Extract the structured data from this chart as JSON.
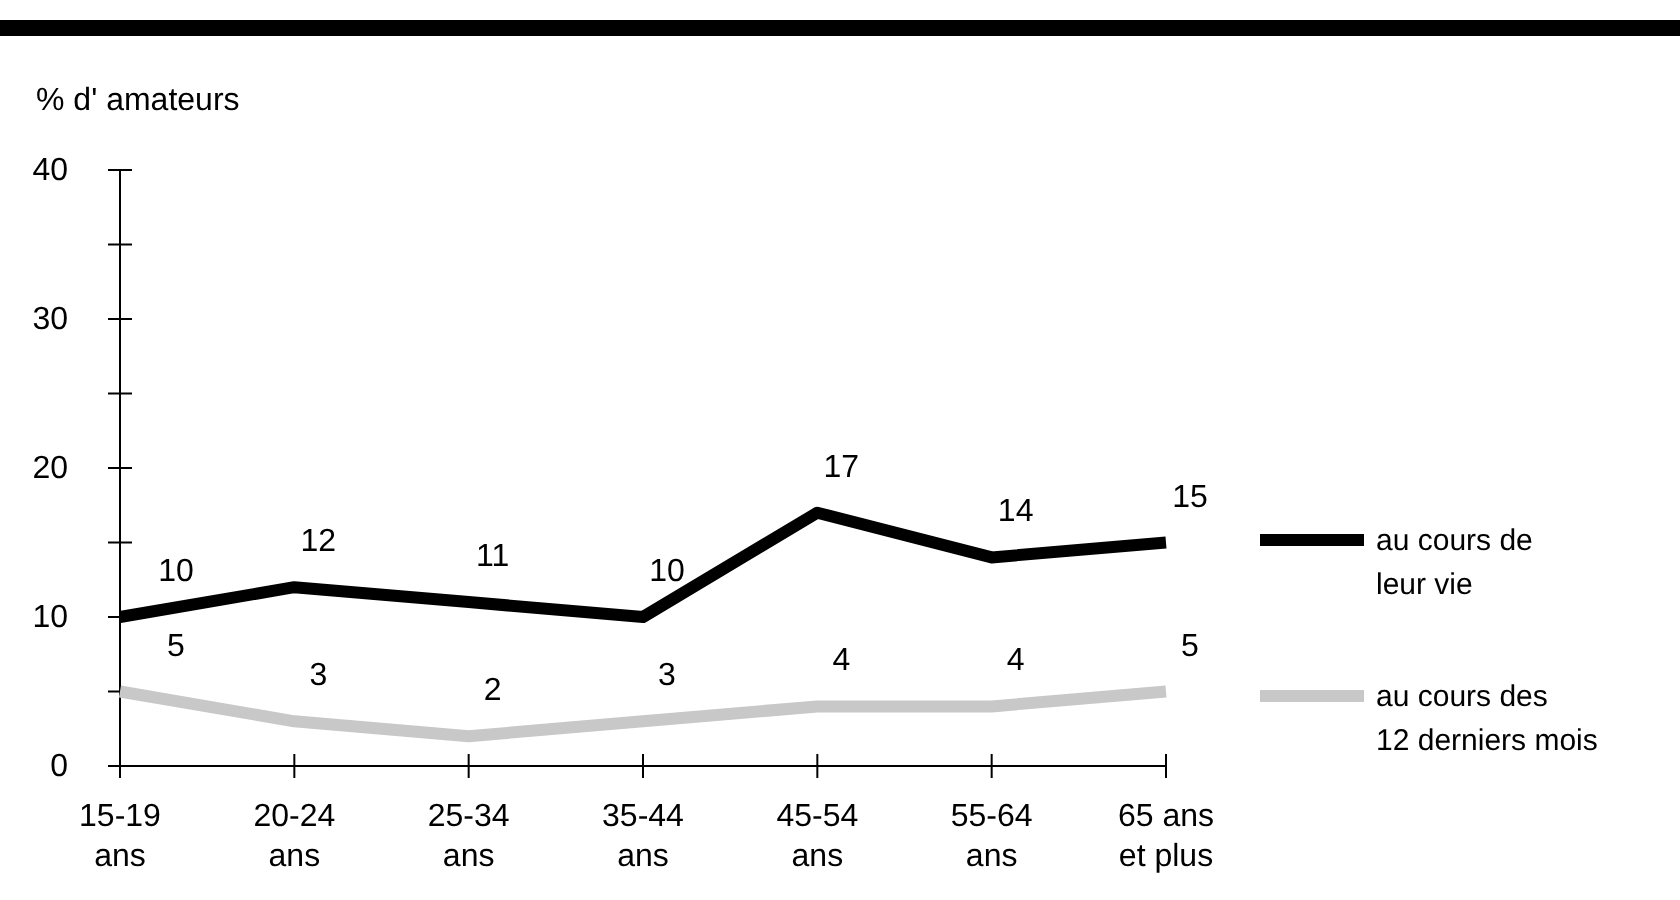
{
  "chart_data": {
    "type": "line",
    "ylabel": "% d' amateurs",
    "categories": [
      "15-19 ans",
      "20-24 ans",
      "25-34 ans",
      "35-44 ans",
      "45-54 ans",
      "55-64 ans",
      "65 ans et plus"
    ],
    "series": [
      {
        "name": "au cours de leur vie",
        "color": "#000000",
        "values": [
          10,
          12,
          11,
          10,
          17,
          14,
          15
        ]
      },
      {
        "name": "au cours des 12 derniers mois",
        "color": "#c8c8c8",
        "values": [
          5,
          3,
          2,
          3,
          4,
          4,
          5
        ]
      }
    ],
    "ylim": [
      0,
      40
    ],
    "yticks": [
      0,
      {
        "value": 5,
        "label": null
      },
      10,
      {
        "value": 15,
        "label": null
      },
      20,
      {
        "value": 25,
        "label": null
      },
      30,
      {
        "value": 35,
        "label": null
      },
      40
    ],
    "data_labels": true,
    "legend": "right",
    "grid": false,
    "marker": "none",
    "line_style": "solid"
  }
}
